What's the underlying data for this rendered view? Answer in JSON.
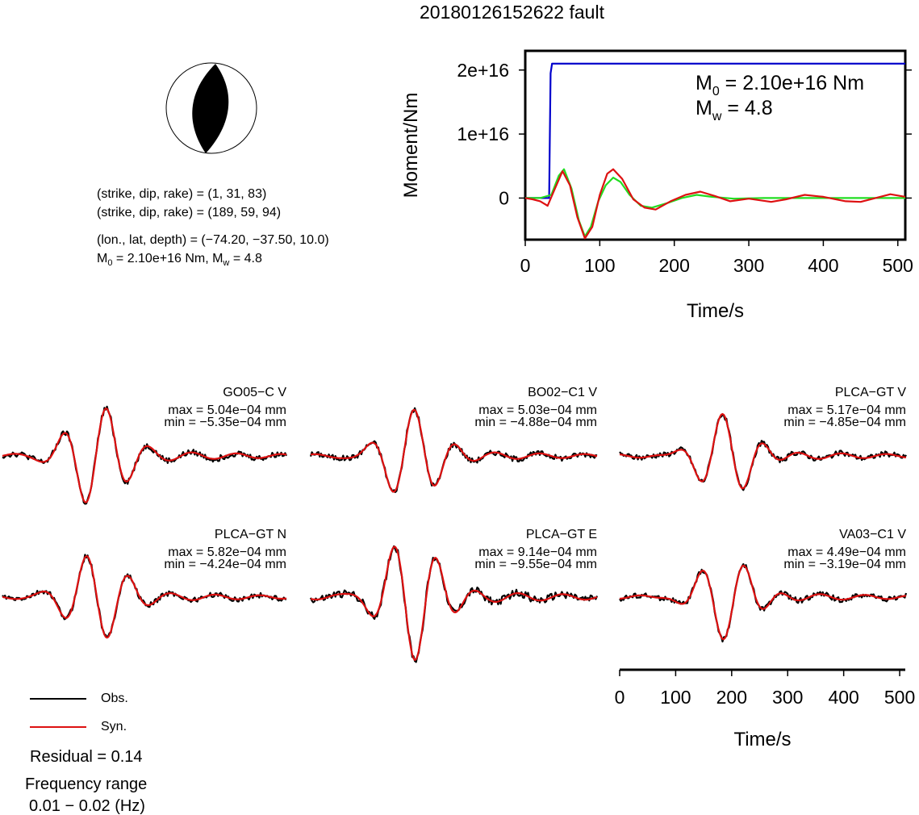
{
  "page": {
    "title": "20180126152622 fault"
  },
  "focal": {
    "plane1": "(strike, dip, rake) = (1, 31, 83)",
    "plane2": "(strike, dip, rake) = (189, 59, 94)",
    "location": "(lon., lat, depth) = (−74.20, −37.50, 10.0)",
    "moment_prefix": "M",
    "moment_sub": "0",
    "moment_rest": " = 2.10e+16 Nm, M",
    "mw_sub": "w",
    "mw_rest": " = 4.8"
  },
  "chart_data": [
    {
      "type": "line",
      "name": "moment-rate",
      "xlabel": "Time/s",
      "ylabel": "Moment/Nm",
      "xlim": [
        0,
        510
      ],
      "ylim": [
        -6500000000000000.0,
        2.3e+16
      ],
      "xticks": [
        0,
        100,
        200,
        300,
        400,
        500
      ],
      "yticks": [
        0,
        1e+16,
        2e+16
      ],
      "ytick_labels": [
        "0",
        "1e+16",
        "2e+16"
      ],
      "annotation_m0": "M",
      "annotation_m0_sub": "0",
      "annotation_m0_rest": " = 2.10e+16 Nm",
      "annotation_mw": "M",
      "annotation_mw_sub": "w",
      "annotation_mw_rest": " = 4.8",
      "series": [
        {
          "color": "#0000cc",
          "x": [
            0,
            32,
            33,
            34,
            36,
            510
          ],
          "y": [
            0,
            0,
            1e+16,
            1.95e+16,
            2.1e+16,
            2.1e+16
          ]
        },
        {
          "color": "#22dd22",
          "x": [
            0,
            20,
            35,
            45,
            52,
            62,
            72,
            80,
            88,
            98,
            108,
            118,
            128,
            140,
            155,
            170,
            190,
            210,
            230,
            250,
            280,
            320,
            400,
            510
          ],
          "y": [
            0,
            0,
            500000000000000.0,
            3500000000000000.0,
            4500000000000000.0,
            1500000000000000.0,
            -3500000000000000.0,
            -6000000000000000.0,
            -4500000000000000.0,
            -500000000000000.0,
            2000000000000000.0,
            3200000000000000.0,
            2500000000000000.0,
            500000000000000.0,
            -1200000000000000.0,
            -1500000000000000.0,
            -800000000000000.0,
            0.0,
            500000000000000.0,
            200000000000000.0,
            -100000000000000.0,
            0,
            0,
            0
          ]
        },
        {
          "color": "#dd1111",
          "x": [
            0,
            10,
            20,
            30,
            40,
            50,
            60,
            70,
            80,
            90,
            100,
            110,
            118,
            130,
            145,
            160,
            175,
            195,
            215,
            235,
            255,
            275,
            300,
            330,
            350,
            375,
            400,
            430,
            450,
            470,
            490,
            510
          ],
          "y": [
            0,
            -200000000000000.0,
            -500000000000000.0,
            -1200000000000000.0,
            1500000000000000.0,
            4200000000000000.0,
            2000000000000000.0,
            -3000000000000000.0,
            -6300000000000000.0,
            -4500000000000000.0,
            500000000000000.0,
            3800000000000000.0,
            4500000000000000.0,
            3000000000000000.0,
            -200000000000000.0,
            -1500000000000000.0,
            -1800000000000000.0,
            -500000000000000.0,
            500000000000000.0,
            1000000000000000.0,
            300000000000000.0,
            -500000000000000.0,
            -100000000000000.0,
            -600000000000000.0,
            -200000000000000.0,
            500000000000000.0,
            200000000000000.0,
            -500000000000000.0,
            -600000000000000.0,
            0.0,
            600000000000000.0,
            200000000000000.0
          ]
        }
      ]
    },
    {
      "type": "line",
      "name": "waveform-fits",
      "xlabel": "Time/s",
      "xlim": [
        0,
        510
      ],
      "xticks": [
        0,
        100,
        200,
        300,
        400,
        500
      ],
      "traces": [
        {
          "station": "GO05−C V",
          "max": "max = 5.04e−04 mm",
          "min": "min = −5.35e−04 mm"
        },
        {
          "station": "BO02−C1 V",
          "max": "max = 5.03e−04 mm",
          "min": "min = −4.88e−04 mm"
        },
        {
          "station": "PLCA−GT V",
          "max": "max = 5.17e−04 mm",
          "min": "min = −4.85e−04 mm"
        },
        {
          "station": "PLCA−GT N",
          "max": "max = 5.82e−04 mm",
          "min": "min = −4.24e−04 mm"
        },
        {
          "station": "PLCA−GT E",
          "max": "max = 9.14e−04 mm",
          "min": "min = −9.55e−04 mm"
        },
        {
          "station": "VA03−C1 V",
          "max": "max = 4.49e−04 mm",
          "min": "min = −3.19e−04 mm"
        }
      ],
      "legend": [
        {
          "label": "Obs.",
          "color": "#000000"
        },
        {
          "label": "Syn.",
          "color": "#dd1111"
        }
      ]
    }
  ],
  "summary": {
    "residual": "Residual = 0.14",
    "freq_title": "Frequency range",
    "freq_value": "0.01 − 0.02 (Hz)"
  }
}
